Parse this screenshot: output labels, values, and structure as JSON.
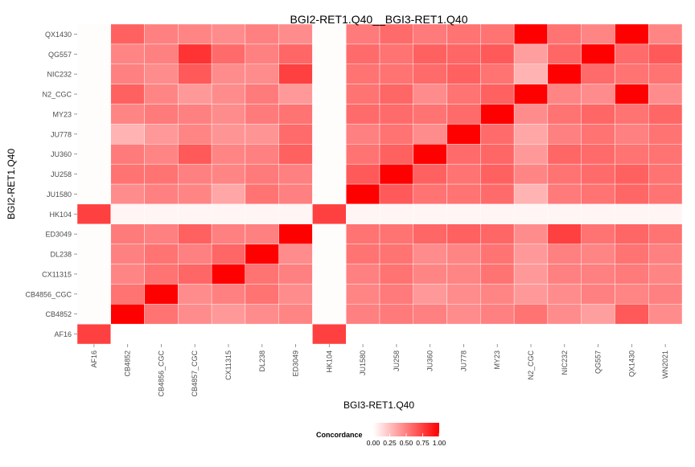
{
  "chart_data": {
    "type": "heatmap",
    "title": "BGI2-RET1.Q40__BGI3-RET1.Q40",
    "xlabel": "BGI3-RET1.Q40",
    "ylabel": "BGI2-RET1.Q40",
    "x_categories": [
      "AF16",
      "CB4852",
      "CB4856_CGC",
      "CB4857_CGC",
      "CX11315",
      "DL238",
      "ED3049",
      "HK104",
      "JU1580",
      "JU258",
      "JU360",
      "JU778",
      "MY23",
      "N2_CGC",
      "NIC232",
      "QG557",
      "QX1430",
      "WN2021"
    ],
    "y_categories": [
      "AF16",
      "CB4852",
      "CB4856_CGC",
      "CX11315",
      "DL238",
      "ED3049",
      "HK104",
      "JU1580",
      "JU258",
      "JU360",
      "JU778",
      "MY23",
      "N2_CGC",
      "NIC232",
      "QG557",
      "QX1430"
    ],
    "values": [
      [
        0.75,
        0.0,
        0.0,
        0.0,
        0.0,
        0.0,
        0.0,
        0.75,
        0.0,
        0.0,
        0.0,
        0.0,
        0.0,
        0.0,
        0.0,
        0.0,
        0.0,
        0.0
      ],
      [
        0.01,
        1.0,
        0.55,
        0.45,
        0.4,
        0.45,
        0.48,
        0.01,
        0.5,
        0.52,
        0.5,
        0.45,
        0.5,
        0.55,
        0.45,
        0.38,
        0.65,
        0.45
      ],
      [
        0.01,
        0.55,
        1.0,
        0.45,
        0.5,
        0.55,
        0.45,
        0.01,
        0.48,
        0.52,
        0.4,
        0.45,
        0.48,
        0.4,
        0.45,
        0.5,
        0.48,
        0.5
      ],
      [
        0.01,
        0.48,
        0.55,
        0.6,
        1.0,
        0.55,
        0.5,
        0.01,
        0.5,
        0.55,
        0.48,
        0.48,
        0.55,
        0.4,
        0.5,
        0.5,
        0.52,
        0.48
      ],
      [
        0.01,
        0.5,
        0.55,
        0.5,
        0.6,
        1.0,
        0.45,
        0.01,
        0.55,
        0.55,
        0.45,
        0.48,
        0.55,
        0.4,
        0.5,
        0.48,
        0.55,
        0.5
      ],
      [
        0.01,
        0.52,
        0.5,
        0.62,
        0.5,
        0.5,
        1.0,
        0.01,
        0.55,
        0.55,
        0.6,
        0.62,
        0.6,
        0.45,
        0.75,
        0.55,
        0.6,
        0.55
      ],
      [
        0.75,
        0.04,
        0.04,
        0.04,
        0.04,
        0.04,
        0.04,
        0.75,
        0.04,
        0.04,
        0.04,
        0.04,
        0.04,
        0.04,
        0.04,
        0.04,
        0.04,
        0.04
      ],
      [
        0.01,
        0.45,
        0.5,
        0.48,
        0.35,
        0.55,
        0.5,
        0.01,
        1.0,
        0.65,
        0.55,
        0.55,
        0.58,
        0.3,
        0.52,
        0.55,
        0.6,
        0.55
      ],
      [
        0.01,
        0.55,
        0.55,
        0.5,
        0.48,
        0.52,
        0.5,
        0.01,
        0.65,
        1.0,
        0.62,
        0.55,
        0.62,
        0.48,
        0.55,
        0.58,
        0.62,
        0.55
      ],
      [
        0.01,
        0.52,
        0.48,
        0.65,
        0.48,
        0.5,
        0.62,
        0.01,
        0.55,
        0.62,
        1.0,
        0.58,
        0.6,
        0.4,
        0.6,
        0.58,
        0.55,
        0.55
      ],
      [
        0.01,
        0.3,
        0.4,
        0.48,
        0.42,
        0.42,
        0.58,
        0.01,
        0.5,
        0.55,
        0.45,
        1.0,
        0.58,
        0.35,
        0.5,
        0.55,
        0.5,
        0.55
      ],
      [
        0.01,
        0.48,
        0.52,
        0.5,
        0.45,
        0.52,
        0.55,
        0.01,
        0.58,
        0.58,
        0.55,
        0.58,
        1.0,
        0.45,
        0.55,
        0.6,
        0.55,
        0.6
      ],
      [
        0.01,
        0.62,
        0.48,
        0.4,
        0.45,
        0.52,
        0.4,
        0.01,
        0.55,
        0.6,
        0.45,
        0.55,
        0.62,
        1.0,
        0.48,
        0.45,
        1.0,
        0.45
      ],
      [
        0.01,
        0.5,
        0.45,
        0.65,
        0.45,
        0.45,
        0.75,
        0.01,
        0.55,
        0.55,
        0.58,
        0.62,
        0.55,
        0.3,
        1.0,
        0.58,
        0.55,
        0.55
      ],
      [
        0.01,
        0.48,
        0.5,
        0.8,
        0.58,
        0.5,
        0.6,
        0.01,
        0.58,
        0.55,
        0.62,
        0.6,
        0.65,
        0.38,
        0.6,
        1.0,
        0.58,
        0.65
      ],
      [
        0.01,
        0.62,
        0.5,
        0.48,
        0.45,
        0.5,
        0.45,
        0.01,
        0.52,
        0.58,
        0.52,
        0.55,
        0.55,
        1.0,
        0.55,
        0.48,
        1.0,
        0.48
      ]
    ],
    "legend": {
      "title": "Concordance",
      "ticks": [
        "0.00",
        "0.25",
        "0.50",
        "0.75",
        "1.00"
      ],
      "range": [
        0,
        1
      ],
      "position": "bottom"
    },
    "colors": {
      "low": "#ffffff",
      "high": "#ff0000",
      "panel": "#ebebeb"
    },
    "grid": true
  }
}
